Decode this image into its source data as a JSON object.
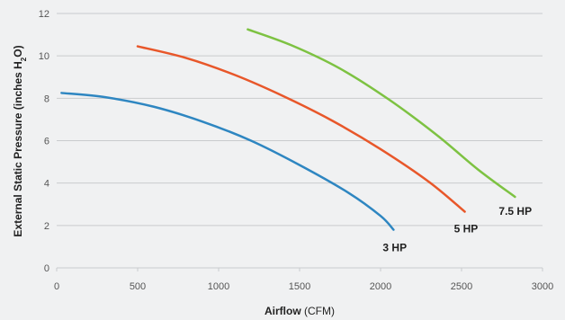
{
  "chart_data": {
    "type": "line",
    "xlabel": {
      "bold": "Airflow",
      "normal": " (CFM)"
    },
    "ylabel": {
      "main": "External Static Pressure (inches H",
      "sub": "2",
      "tail": "O)"
    },
    "xlim": [
      0,
      3000
    ],
    "ylim": [
      0,
      12
    ],
    "xticks": [
      "0",
      "500",
      "1000",
      "1500",
      "2000",
      "2500",
      "3000"
    ],
    "yticks": [
      "0",
      "2",
      "4",
      "6",
      "8",
      "10",
      "12"
    ],
    "grid": "horizontal",
    "series": [
      {
        "name": "3 HP",
        "color": "#2e86c1",
        "points": [
          [
            30,
            8.25
          ],
          [
            300,
            8.05
          ],
          [
            600,
            7.6
          ],
          [
            900,
            6.9
          ],
          [
            1200,
            6.0
          ],
          [
            1500,
            4.85
          ],
          [
            1800,
            3.55
          ],
          [
            2000,
            2.45
          ],
          [
            2080,
            1.8
          ]
        ]
      },
      {
        "name": "5 HP",
        "color": "#e8572a",
        "points": [
          [
            500,
            10.45
          ],
          [
            800,
            9.9
          ],
          [
            1100,
            9.1
          ],
          [
            1400,
            8.1
          ],
          [
            1700,
            6.95
          ],
          [
            2000,
            5.6
          ],
          [
            2300,
            4.05
          ],
          [
            2520,
            2.65
          ]
        ]
      },
      {
        "name": "7.5 HP",
        "color": "#7dc242",
        "points": [
          [
            1180,
            11.25
          ],
          [
            1450,
            10.5
          ],
          [
            1750,
            9.4
          ],
          [
            2050,
            7.95
          ],
          [
            2350,
            6.25
          ],
          [
            2600,
            4.65
          ],
          [
            2830,
            3.35
          ]
        ]
      }
    ]
  }
}
